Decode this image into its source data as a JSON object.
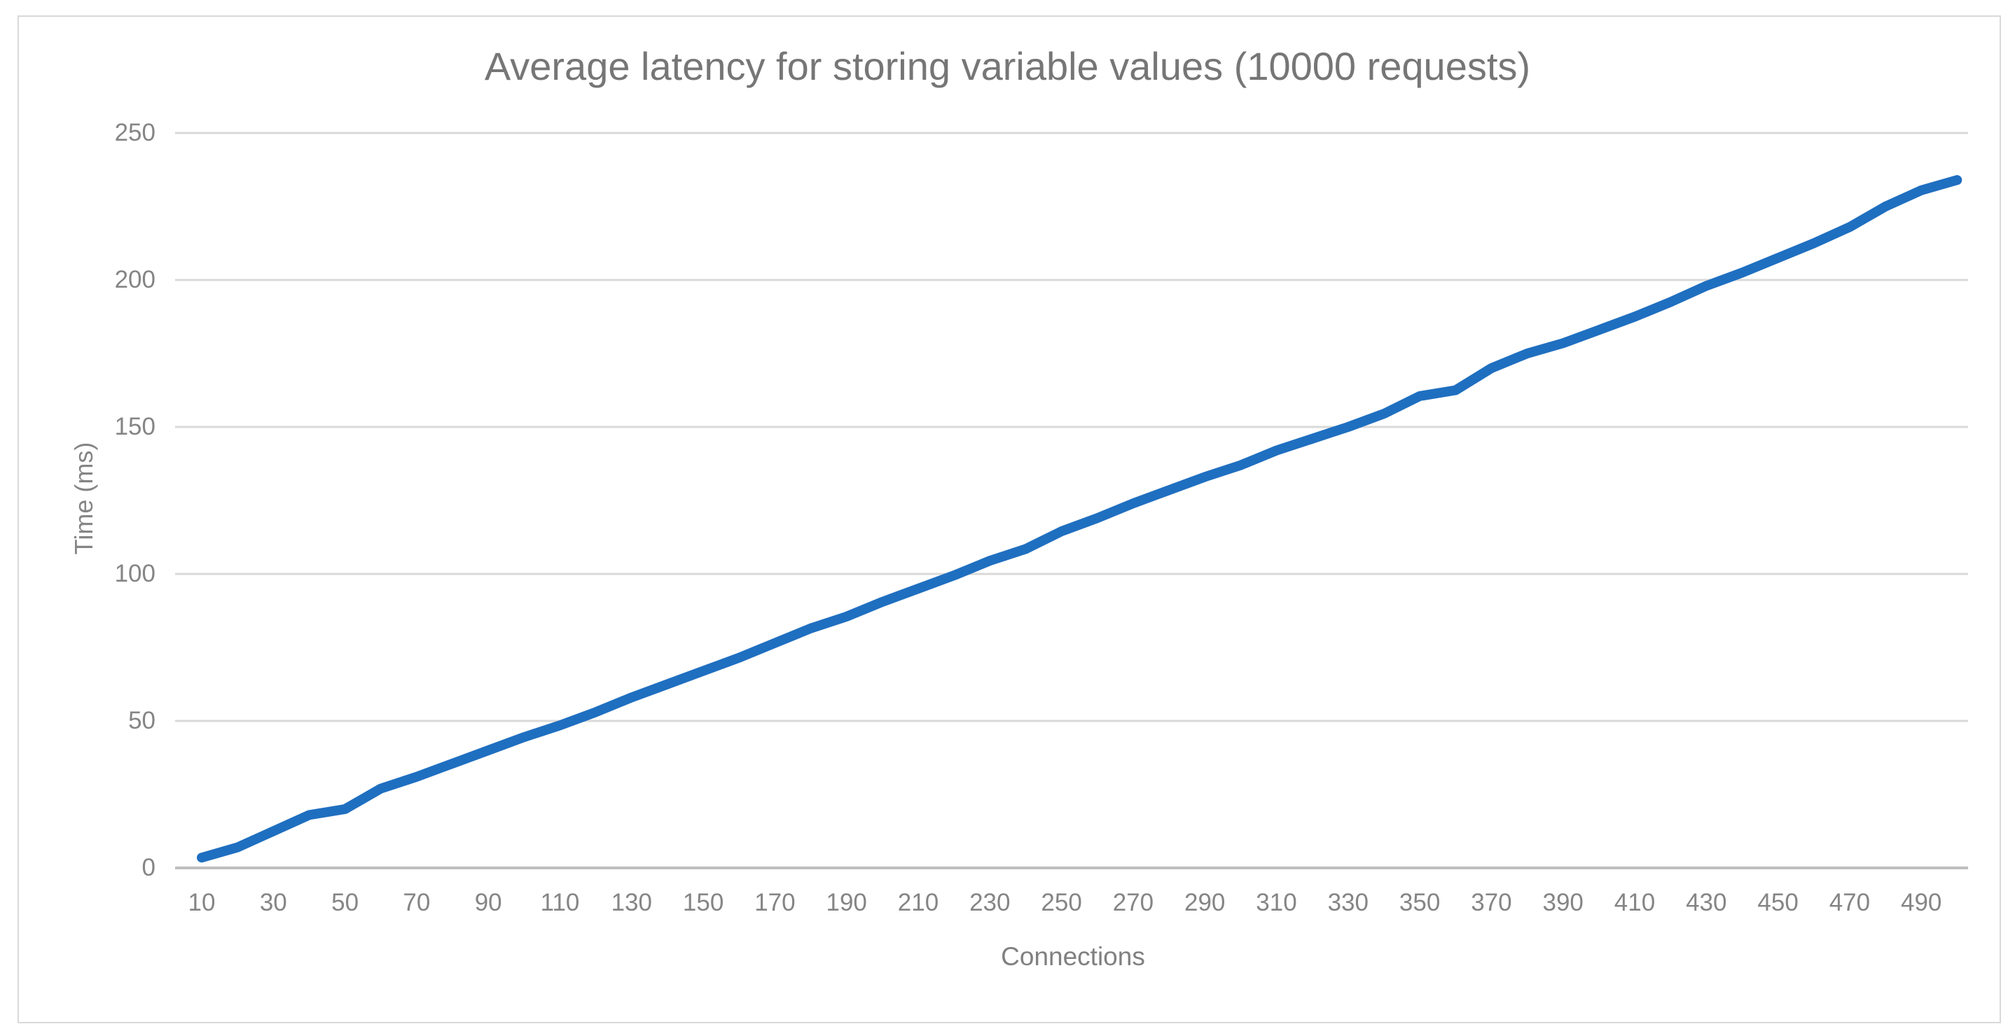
{
  "chart_data": {
    "type": "line",
    "title": "Average latency for storing variable values (10000 requests)",
    "xlabel": "Connections",
    "ylabel": "Time (ms)",
    "x": [
      10,
      20,
      30,
      40,
      50,
      60,
      70,
      80,
      90,
      100,
      110,
      120,
      130,
      140,
      150,
      160,
      170,
      180,
      190,
      200,
      210,
      220,
      230,
      240,
      250,
      260,
      270,
      280,
      290,
      300,
      310,
      320,
      330,
      340,
      350,
      360,
      370,
      380,
      390,
      400,
      410,
      420,
      430,
      440,
      450,
      460,
      470,
      480,
      490,
      500
    ],
    "series": [
      {
        "values": [
          3.5,
          7,
          12.5,
          18,
          20,
          27,
          31,
          35.5,
          40,
          44.5,
          48.5,
          53,
          58,
          62.5,
          67,
          71.5,
          76.5,
          81.5,
          85.5,
          90.5,
          95,
          99.5,
          104.5,
          108.5,
          114.5,
          119,
          124,
          128.5,
          133,
          137,
          142,
          146,
          150,
          154.5,
          160.5,
          162.5,
          170,
          175,
          178.5,
          183,
          187.5,
          192.5,
          198,
          202.5,
          207.5,
          212.5,
          218,
          225,
          230.5,
          234
        ]
      }
    ],
    "x_tick_labels": [
      "10",
      "30",
      "50",
      "70",
      "90",
      "110",
      "130",
      "150",
      "170",
      "190",
      "210",
      "230",
      "250",
      "270",
      "290",
      "310",
      "330",
      "350",
      "370",
      "390",
      "410",
      "430",
      "450",
      "470",
      "490"
    ],
    "y_ticks": [
      0,
      50,
      100,
      150,
      200,
      250
    ],
    "ylim": [
      0,
      250
    ],
    "grid": "horizontal-only",
    "legend": "none",
    "line_color": "#1F6FC0",
    "gridline_color": "#D9D9D9",
    "axis_line_color": "#BFBFBF",
    "title_color": "#767676",
    "tick_label_color": "#858585"
  }
}
